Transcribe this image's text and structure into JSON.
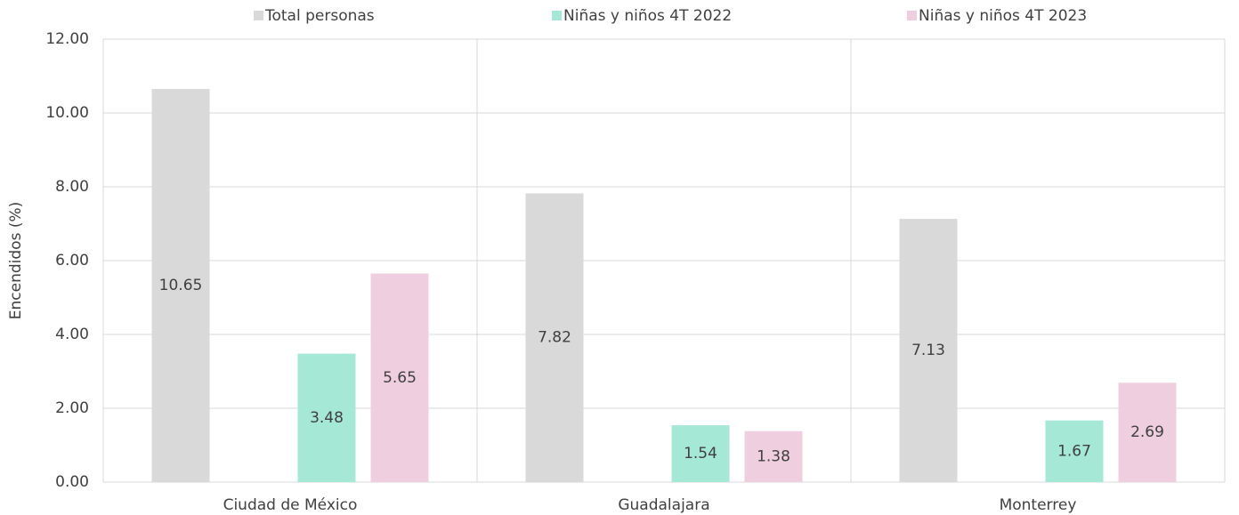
{
  "chart_data": {
    "type": "bar",
    "y_label": "Encendidos (%)",
    "categories": [
      "Ciudad de México",
      "Guadalajara",
      "Monterrey"
    ],
    "series": [
      {
        "name": "Total personas",
        "color": "#d9d9d9",
        "values": [
          10.65,
          7.82,
          7.13
        ]
      },
      {
        "name": "Niñas y niños 4T 2022",
        "color": "#a6e8d6",
        "values": [
          3.48,
          1.54,
          1.67
        ]
      },
      {
        "name": "Niñas y niños 4T 2023",
        "color": "#efcfdf",
        "values": [
          5.65,
          1.38,
          2.69
        ]
      }
    ],
    "ylim": [
      0,
      12
    ],
    "yticks": [
      {
        "value": 0,
        "label": "0.00"
      },
      {
        "value": 2,
        "label": "2.00"
      },
      {
        "value": 4,
        "label": "4.00"
      },
      {
        "value": 6,
        "label": "6.00"
      },
      {
        "value": 8,
        "label": "8.00"
      },
      {
        "value": 10,
        "label": "10.00"
      },
      {
        "value": 12,
        "label": "12.00"
      }
    ],
    "grid": true,
    "legend": "top"
  }
}
